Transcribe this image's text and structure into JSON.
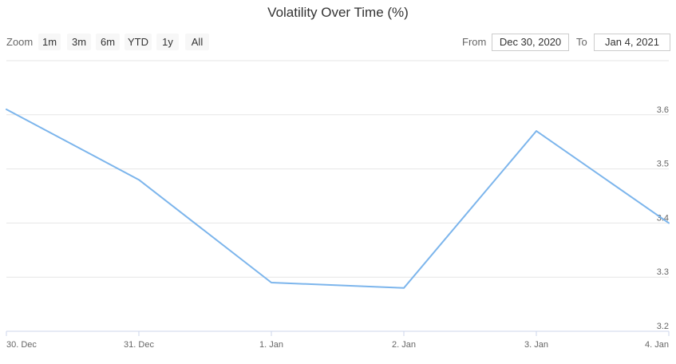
{
  "title": "Volatility Over Time (%)",
  "range_selector": {
    "zoom_label": "Zoom",
    "buttons": [
      "1m",
      "3m",
      "6m",
      "YTD",
      "1y",
      "All"
    ],
    "from_label": "From",
    "from_value": "Dec 30, 2020",
    "to_label": "To",
    "to_value": "Jan 4, 2021"
  },
  "colors": {
    "series_line": "#7cb5ec",
    "grid": "#e6e6e6",
    "axis_line": "#ccd6eb"
  },
  "chart_data": {
    "type": "line",
    "title": "Volatility Over Time (%)",
    "x": [
      "2020-12-30",
      "2020-12-31",
      "2021-01-01",
      "2021-01-02",
      "2021-01-03",
      "2021-01-04"
    ],
    "categories": [
      "30. Dec",
      "31. Dec",
      "1. Jan",
      "2. Jan",
      "3. Jan",
      "4. Jan"
    ],
    "series": [
      {
        "values": [
          3.61,
          3.48,
          3.29,
          3.28,
          3.57,
          3.4
        ]
      }
    ],
    "y_ticks": [
      "3.2",
      "3.3",
      "3.4",
      "3.5",
      "3.6"
    ],
    "ylim": [
      3.2,
      3.7
    ],
    "grid": true,
    "y_axis_side": "right",
    "legend": "none"
  }
}
